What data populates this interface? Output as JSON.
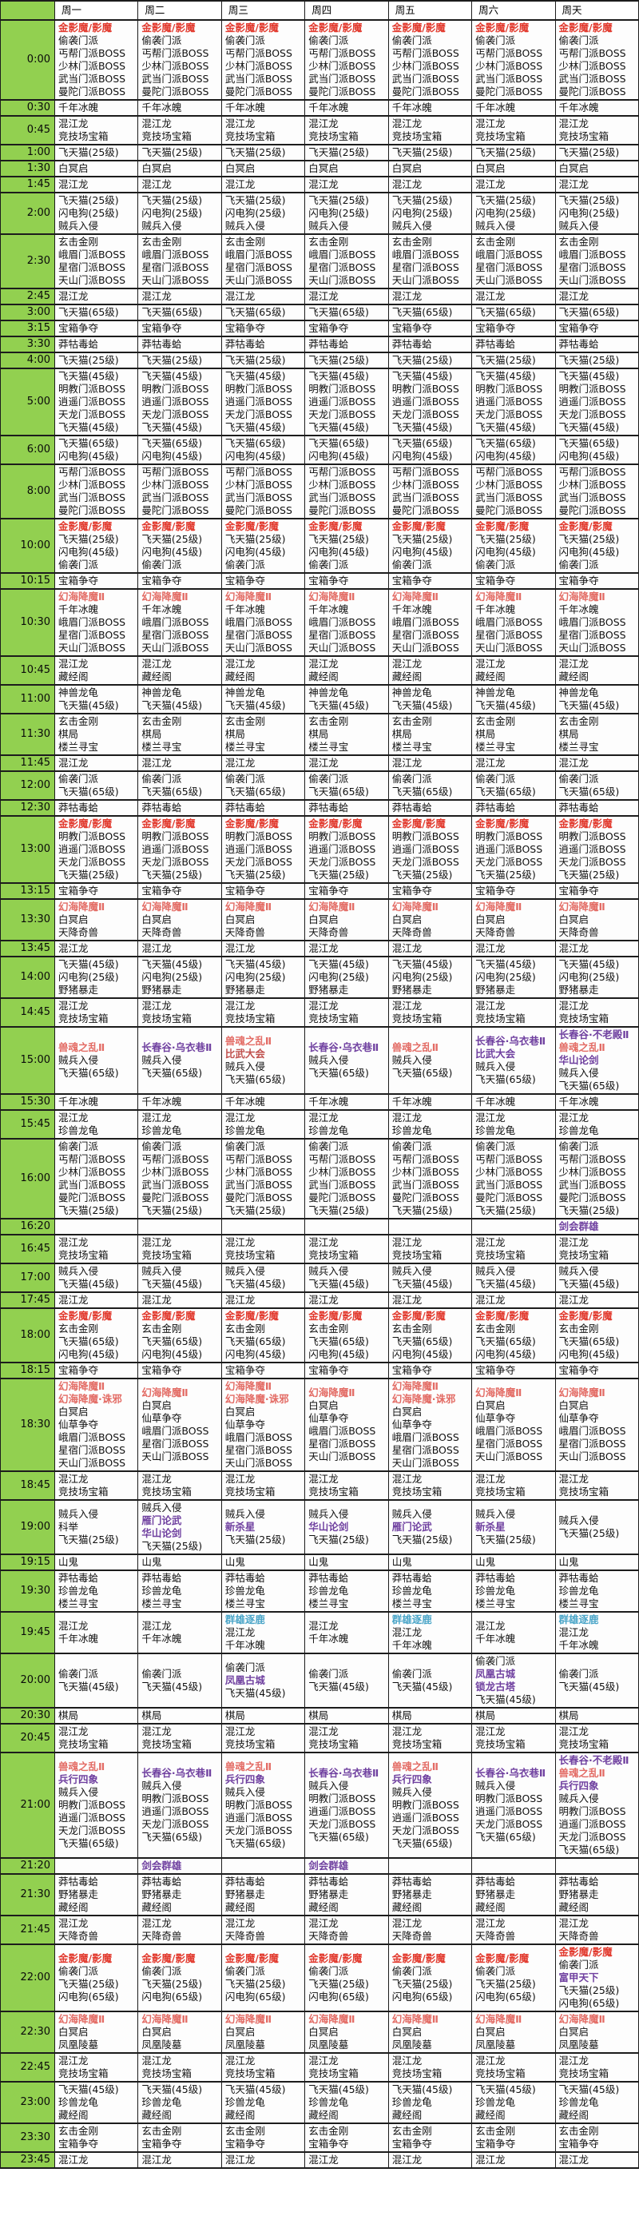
{
  "colors": {
    "red": "#e23a2e",
    "softred": "#e36c65",
    "purple": "#7041a0",
    "cyan": "#4aa5c8",
    "darkred": "#c0504d"
  },
  "schedule": {
    "corner_label": "",
    "day_headers": [
      "周一",
      "周二",
      "周三",
      "周四",
      "周五",
      "周六",
      "周天"
    ],
    "rows": [
      {
        "time": "0:00",
        "all": [
          {
            "t": "金影魔/影魔",
            "c": "red"
          },
          "偷袭门派",
          "丐帮门派BOSS",
          "少林门派BOSS",
          "武当门派BOSS",
          "曼陀门派BOSS"
        ]
      },
      {
        "time": "0:30",
        "all": [
          "千年冰魄"
        ]
      },
      {
        "time": "0:45",
        "all": [
          "混江龙",
          "竞技场宝箱"
        ]
      },
      {
        "time": "1:00",
        "all": [
          "飞天猫(25级)"
        ]
      },
      {
        "time": "1:30",
        "all": [
          "白冥启"
        ]
      },
      {
        "time": "1:45",
        "all": [
          "混江龙"
        ]
      },
      {
        "time": "2:00",
        "all": [
          "飞天猫(25级)",
          "闪电狗(25级)",
          "贼兵入侵"
        ]
      },
      {
        "time": "2:30",
        "all": [
          "玄击金刚",
          "峨眉门派BOSS",
          "星宿门派BOSS",
          "天山门派BOSS"
        ]
      },
      {
        "time": "2:45",
        "all": [
          "混江龙"
        ]
      },
      {
        "time": "3:00",
        "all": [
          "飞天猫(65级)"
        ]
      },
      {
        "time": "3:15",
        "all": [
          "宝箱争夺"
        ]
      },
      {
        "time": "3:30",
        "all": [
          "莽牯毒蛤"
        ]
      },
      {
        "time": "4:00",
        "all": [
          "飞天猫(25级)"
        ]
      },
      {
        "time": "5:00",
        "all": [
          "飞天猫(45级)",
          "明教门派BOSS",
          "逍遥门派BOSS",
          "天龙门派BOSS",
          "飞天猫(45级)"
        ]
      },
      {
        "time": "6:00",
        "all": [
          "飞天猫(65级)",
          "闪电狗(45级)"
        ]
      },
      {
        "time": "8:00",
        "all": [
          "丐帮门派BOSS",
          "少林门派BOSS",
          "武当门派BOSS",
          "曼陀门派BOSS"
        ]
      },
      {
        "time": "10:00",
        "all": [
          {
            "t": "金影魔/影魔",
            "c": "red"
          },
          "飞天猫(25级)",
          "闪电狗(45级)",
          "偷袭门派"
        ]
      },
      {
        "time": "10:15",
        "all": [
          "宝箱争夺"
        ]
      },
      {
        "time": "10:30",
        "all": [
          {
            "t": "幻海降魔Ⅱ",
            "c": "softred"
          },
          "千年冰魄",
          "峨眉门派BOSS",
          "星宿门派BOSS",
          "天山门派BOSS"
        ]
      },
      {
        "time": "10:45",
        "all": [
          "混江龙",
          "藏经阁"
        ]
      },
      {
        "time": "11:00",
        "all": [
          "神兽龙龟",
          "飞天猫(45级)"
        ]
      },
      {
        "time": "11:30",
        "all": [
          "玄击金刚",
          "棋局",
          "楼兰寻宝"
        ]
      },
      {
        "time": "11:45",
        "all": [
          "混江龙"
        ]
      },
      {
        "time": "12:00",
        "all": [
          "偷袭门派",
          "飞天猫(65级)"
        ]
      },
      {
        "time": "12:30",
        "all": [
          "莽牯毒蛤"
        ]
      },
      {
        "time": "13:00",
        "all": [
          {
            "t": "金影魔/影魔",
            "c": "red"
          },
          "明教门派BOSS",
          "逍遥门派BOSS",
          "天龙门派BOSS",
          "飞天猫(25级)"
        ]
      },
      {
        "time": "13:15",
        "all": [
          "宝箱争夺"
        ]
      },
      {
        "time": "13:30",
        "all": [
          {
            "t": "幻海降魔Ⅱ",
            "c": "softred"
          },
          "白冥启",
          "天降奇兽"
        ]
      },
      {
        "time": "13:45",
        "all": [
          "混江龙"
        ]
      },
      {
        "time": "14:00",
        "all": [
          "飞天猫(45级)",
          "闪电狗(25级)",
          "野猪暴走"
        ]
      },
      {
        "time": "14:45",
        "all": [
          "混江龙",
          "竞技场宝箱"
        ]
      },
      {
        "time": "15:00",
        "days": [
          [
            {
              "t": "兽魂之乱Ⅱ",
              "c": "softred"
            },
            "贼兵入侵",
            "飞天猫(65级)"
          ],
          [
            {
              "t": "长春谷·乌衣巷Ⅱ",
              "c": "purple"
            },
            "贼兵入侵",
            "飞天猫(65级)"
          ],
          [
            {
              "t": "兽魂之乱Ⅱ",
              "c": "softred"
            },
            {
              "t": "比武大会",
              "c": "darkred"
            },
            "贼兵入侵",
            "飞天猫(65级)"
          ],
          [
            {
              "t": "长春谷·乌衣巷Ⅱ",
              "c": "purple"
            },
            "贼兵入侵",
            "飞天猫(65级)"
          ],
          [
            {
              "t": "兽魂之乱Ⅱ",
              "c": "softred"
            },
            "贼兵入侵",
            "飞天猫(65级)"
          ],
          [
            {
              "t": "长春谷·乌衣巷Ⅱ",
              "c": "purple"
            },
            {
              "t": "比武大会",
              "c": "purple"
            },
            "贼兵入侵",
            "飞天猫(65级)"
          ],
          [
            {
              "t": "长春谷·不老殿Ⅱ",
              "c": "purple"
            },
            {
              "t": "兽魂之乱Ⅱ",
              "c": "softred"
            },
            {
              "t": "华山论剑",
              "c": "purple"
            },
            "贼兵入侵",
            "飞天猫(65级)"
          ]
        ]
      },
      {
        "time": "15:30",
        "all": [
          "千年冰魄"
        ]
      },
      {
        "time": "15:45",
        "all": [
          "混江龙",
          "珍兽龙龟"
        ]
      },
      {
        "time": "16:00",
        "all": [
          "偷袭门派",
          "丐帮门派BOSS",
          "少林门派BOSS",
          "武当门派BOSS",
          "曼陀门派BOSS",
          "飞天猫(25级)"
        ]
      },
      {
        "time": "16:20",
        "days": [
          [],
          [],
          [],
          [],
          [],
          [],
          [
            {
              "t": "剑会群雄",
              "c": "purple"
            }
          ]
        ]
      },
      {
        "time": "16:45",
        "all": [
          "混江龙",
          "竞技场宝箱"
        ]
      },
      {
        "time": "17:00",
        "all": [
          "贼兵入侵",
          "飞天猫(45级)"
        ]
      },
      {
        "time": "17:45",
        "all": [
          "混江龙"
        ]
      },
      {
        "time": "18:00",
        "all": [
          {
            "t": "金影魔/影魔",
            "c": "red"
          },
          "玄击金刚",
          "飞天猫(65级)",
          "闪电狗(45级)"
        ]
      },
      {
        "time": "18:15",
        "all": [
          "宝箱争夺"
        ]
      },
      {
        "time": "18:30",
        "days": [
          [
            {
              "t": "幻海降魔Ⅱ",
              "c": "softred"
            },
            {
              "t": "幻海降魔·诛邪",
              "c": "softred"
            },
            "白冥启",
            "仙草争夺",
            "峨眉门派BOSS",
            "星宿门派BOSS",
            "天山门派BOSS"
          ],
          [
            {
              "t": "幻海降魔Ⅱ",
              "c": "softred"
            },
            "白冥启",
            "仙草争夺",
            "峨眉门派BOSS",
            "星宿门派BOSS",
            "天山门派BOSS"
          ],
          [
            {
              "t": "幻海降魔Ⅱ",
              "c": "softred"
            },
            {
              "t": "幻海降魔·诛邪",
              "c": "softred"
            },
            "白冥启",
            "仙草争夺",
            "峨眉门派BOSS",
            "星宿门派BOSS",
            "天山门派BOSS"
          ],
          [
            {
              "t": "幻海降魔Ⅱ",
              "c": "softred"
            },
            "白冥启",
            "仙草争夺",
            "峨眉门派BOSS",
            "星宿门派BOSS",
            "天山门派BOSS"
          ],
          [
            {
              "t": "幻海降魔Ⅱ",
              "c": "softred"
            },
            {
              "t": "幻海降魔·诛邪",
              "c": "softred"
            },
            "白冥启",
            "仙草争夺",
            "峨眉门派BOSS",
            "星宿门派BOSS",
            "天山门派BOSS"
          ],
          [
            {
              "t": "幻海降魔Ⅱ",
              "c": "softred"
            },
            "白冥启",
            "仙草争夺",
            "峨眉门派BOSS",
            "星宿门派BOSS",
            "天山门派BOSS"
          ],
          [
            {
              "t": "幻海降魔Ⅱ",
              "c": "softred"
            },
            "白冥启",
            "仙草争夺",
            "峨眉门派BOSS",
            "星宿门派BOSS",
            "天山门派BOSS"
          ]
        ]
      },
      {
        "time": "18:45",
        "all": [
          "混江龙",
          "竞技场宝箱"
        ]
      },
      {
        "time": "19:00",
        "days": [
          [
            "贼兵入侵",
            "科举",
            "飞天猫(25级)"
          ],
          [
            "贼兵入侵",
            {
              "t": "雁门论武",
              "c": "purple"
            },
            {
              "t": "华山论剑",
              "c": "purple"
            },
            "飞天猫(25级)"
          ],
          [
            "贼兵入侵",
            {
              "t": "新杀星",
              "c": "purple"
            },
            "飞天猫(25级)"
          ],
          [
            "贼兵入侵",
            {
              "t": "华山论剑",
              "c": "purple"
            },
            "飞天猫(25级)"
          ],
          [
            "贼兵入侵",
            {
              "t": "雁门论武",
              "c": "purple"
            },
            "飞天猫(25级)"
          ],
          [
            "贼兵入侵",
            {
              "t": "新杀星",
              "c": "purple"
            },
            "飞天猫(25级)"
          ],
          [
            "贼兵入侵",
            "飞天猫(25级)"
          ]
        ]
      },
      {
        "time": "19:15",
        "all": [
          "山鬼"
        ]
      },
      {
        "time": "19:30",
        "all": [
          "莽牯毒蛤",
          "珍兽龙龟",
          "楼兰寻宝"
        ]
      },
      {
        "time": "19:45",
        "days": [
          [
            "混江龙",
            "千年冰魄"
          ],
          [
            "混江龙",
            "千年冰魄"
          ],
          [
            {
              "t": "群雄逐鹿",
              "c": "cyan"
            },
            "混江龙",
            "千年冰魄"
          ],
          [
            "混江龙",
            "千年冰魄"
          ],
          [
            {
              "t": "群雄逐鹿",
              "c": "cyan"
            },
            "混江龙",
            "千年冰魄"
          ],
          [
            "混江龙",
            "千年冰魄"
          ],
          [
            {
              "t": "群雄逐鹿",
              "c": "cyan"
            },
            "混江龙",
            "千年冰魄"
          ]
        ]
      },
      {
        "time": "20:00",
        "days": [
          [
            "偷袭门派",
            "飞天猫(45级)"
          ],
          [
            "偷袭门派",
            "飞天猫(45级)"
          ],
          [
            "偷袭门派",
            {
              "t": "凤凰古城",
              "c": "purple"
            },
            "飞天猫(45级)"
          ],
          [
            "偷袭门派",
            "飞天猫(45级)"
          ],
          [
            "偷袭门派",
            "飞天猫(45级)"
          ],
          [
            "偷袭门派",
            {
              "t": "凤凰古城",
              "c": "purple"
            },
            {
              "t": "锁龙古塔",
              "c": "purple"
            },
            "飞天猫(45级)"
          ],
          [
            "偷袭门派",
            "飞天猫(45级)"
          ]
        ]
      },
      {
        "time": "20:30",
        "all": [
          "棋局"
        ]
      },
      {
        "time": "20:45",
        "all": [
          "混江龙",
          "竞技场宝箱"
        ]
      },
      {
        "time": "21:00",
        "days": [
          [
            {
              "t": "兽魂之乱Ⅱ",
              "c": "softred"
            },
            {
              "t": "兵行四象",
              "c": "purple"
            },
            "贼兵入侵",
            "明教门派BOSS",
            "逍遥门派BOSS",
            "天龙门派BOSS",
            "飞天猫(65级)"
          ],
          [
            {
              "t": "长春谷·乌衣巷Ⅱ",
              "c": "purple"
            },
            "贼兵入侵",
            "明教门派BOSS",
            "逍遥门派BOSS",
            "天龙门派BOSS",
            "飞天猫(65级)"
          ],
          [
            {
              "t": "兽魂之乱Ⅱ",
              "c": "softred"
            },
            {
              "t": "兵行四象",
              "c": "purple"
            },
            "贼兵入侵",
            "明教门派BOSS",
            "逍遥门派BOSS",
            "天龙门派BOSS",
            "飞天猫(65级)"
          ],
          [
            {
              "t": "长春谷·乌衣巷Ⅱ",
              "c": "purple"
            },
            "贼兵入侵",
            "明教门派BOSS",
            "逍遥门派BOSS",
            "天龙门派BOSS",
            "飞天猫(65级)"
          ],
          [
            {
              "t": "兽魂之乱Ⅱ",
              "c": "softred"
            },
            {
              "t": "兵行四象",
              "c": "purple"
            },
            "贼兵入侵",
            "明教门派BOSS",
            "逍遥门派BOSS",
            "天龙门派BOSS",
            "飞天猫(65级)"
          ],
          [
            {
              "t": "长春谷·乌衣巷Ⅱ",
              "c": "purple"
            },
            "贼兵入侵",
            "明教门派BOSS",
            "逍遥门派BOSS",
            "天龙门派BOSS",
            "飞天猫(65级)"
          ],
          [
            {
              "t": "长春谷·不老殿Ⅱ",
              "c": "purple"
            },
            {
              "t": "兽魂之乱Ⅱ",
              "c": "softred"
            },
            {
              "t": "兵行四象",
              "c": "purple"
            },
            "贼兵入侵",
            "明教门派BOSS",
            "逍遥门派BOSS",
            "天龙门派BOSS",
            "飞天猫(65级)"
          ]
        ]
      },
      {
        "time": "21:20",
        "days": [
          [],
          [
            {
              "t": "剑会群雄",
              "c": "purple"
            }
          ],
          [],
          [
            {
              "t": "剑会群雄",
              "c": "purple"
            }
          ],
          [],
          [],
          []
        ]
      },
      {
        "time": "21:30",
        "all": [
          "莽牯毒蛤",
          "野猪暴走",
          "藏经阁"
        ]
      },
      {
        "time": "21:45",
        "all": [
          "混江龙",
          "天降奇兽"
        ]
      },
      {
        "time": "22:00",
        "days": [
          [
            {
              "t": "金影魔/影魔",
              "c": "red"
            },
            "偷袭门派",
            "飞天猫(25级)",
            "闪电狗(65级)"
          ],
          [
            {
              "t": "金影魔/影魔",
              "c": "red"
            },
            "偷袭门派",
            "飞天猫(25级)",
            "闪电狗(65级)"
          ],
          [
            {
              "t": "金影魔/影魔",
              "c": "red"
            },
            "偷袭门派",
            "飞天猫(25级)",
            "闪电狗(65级)"
          ],
          [
            {
              "t": "金影魔/影魔",
              "c": "red"
            },
            "偷袭门派",
            "飞天猫(25级)",
            "闪电狗(65级)"
          ],
          [
            {
              "t": "金影魔/影魔",
              "c": "red"
            },
            "偷袭门派",
            "飞天猫(25级)",
            "闪电狗(65级)"
          ],
          [
            {
              "t": "金影魔/影魔",
              "c": "red"
            },
            "偷袭门派",
            "飞天猫(25级)",
            "闪电狗(65级)"
          ],
          [
            {
              "t": "金影魔/影魔",
              "c": "red"
            },
            "偷袭门派",
            {
              "t": "富甲天下",
              "c": "purple"
            },
            "飞天猫(25级)",
            "闪电狗(65级)"
          ]
        ]
      },
      {
        "time": "22:30",
        "all": [
          {
            "t": "幻海降魔Ⅱ",
            "c": "softred"
          },
          "白冥启",
          "凤凰陵墓"
        ]
      },
      {
        "time": "22:45",
        "all": [
          "混江龙",
          "竞技场宝箱"
        ]
      },
      {
        "time": "23:00",
        "all": [
          "飞天猫(45级)",
          "珍兽龙龟",
          "藏经阁"
        ]
      },
      {
        "time": "23:30",
        "all": [
          "玄击金刚",
          "宝箱争夺"
        ]
      },
      {
        "time": "23:45",
        "all": [
          "混江龙"
        ]
      }
    ]
  }
}
